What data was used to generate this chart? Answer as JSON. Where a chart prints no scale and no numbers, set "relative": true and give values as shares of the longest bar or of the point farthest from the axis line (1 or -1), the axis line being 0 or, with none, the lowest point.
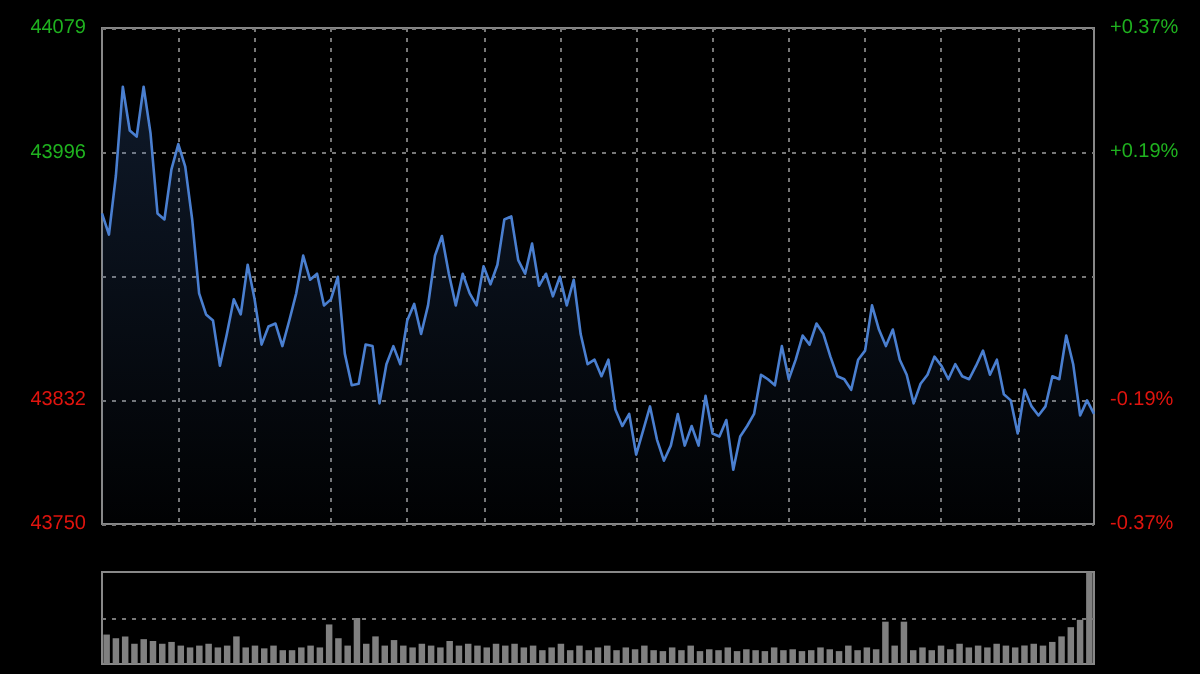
{
  "chart_data": [
    {
      "type": "area",
      "categories": [
        null,
        null,
        null,
        null,
        null,
        null,
        null,
        null,
        null,
        null,
        null,
        null,
        null,
        null,
        null,
        null,
        null,
        null,
        null,
        null,
        null,
        null,
        null,
        null,
        null,
        null,
        null,
        null,
        null,
        null,
        null,
        null,
        null,
        null,
        null,
        null,
        null,
        null,
        null,
        null,
        null,
        null,
        null,
        null,
        null,
        null,
        null,
        null,
        null,
        null,
        null,
        null,
        null,
        null,
        null,
        null,
        null,
        null,
        null,
        null,
        null,
        null,
        null,
        null,
        null,
        null,
        null,
        null,
        null,
        null,
        null,
        null,
        null,
        null,
        null,
        null,
        null,
        null,
        null,
        null,
        null,
        null,
        null,
        null,
        null,
        null,
        null,
        null,
        null,
        null,
        null,
        null,
        null,
        null,
        null,
        null,
        null,
        null,
        null,
        null,
        null,
        null,
        null,
        null,
        null,
        null,
        null,
        null,
        null,
        null,
        null,
        null,
        null,
        null,
        null,
        null,
        null,
        null,
        null,
        null,
        null,
        null,
        null,
        null,
        null,
        null,
        null,
        null,
        null,
        null,
        null,
        null,
        null,
        null,
        null,
        null,
        null,
        null,
        null,
        null,
        null,
        null,
        null,
        null
      ],
      "series": [
        {
          "color": "#4a7fd0",
          "values": [
            43956,
            43942,
            43981,
            44040,
            44011,
            44007,
            44040,
            44009,
            43956,
            43952,
            43985,
            44002,
            43987,
            43952,
            43903,
            43889,
            43885,
            43855,
            43876,
            43899,
            43889,
            43922,
            43899,
            43869,
            43881,
            43883,
            43868,
            43885,
            43903,
            43928,
            43912,
            43916,
            43895,
            43899,
            43914,
            43863,
            43842,
            43843,
            43869,
            43868,
            43830,
            43856,
            43868,
            43856,
            43885,
            43896,
            43876,
            43895,
            43928,
            43941,
            43916,
            43895,
            43916,
            43903,
            43895,
            43921,
            43909,
            43922,
            43952,
            43954,
            43925,
            43916,
            43936,
            43908,
            43916,
            43901,
            43914,
            43895,
            43912,
            43876,
            43856,
            43859,
            43848,
            43859,
            43826,
            43815,
            43823,
            43796,
            43812,
            43828,
            43806,
            43792,
            43802,
            43823,
            43802,
            43815,
            43802,
            43835,
            43810,
            43808,
            43819,
            43786,
            43808,
            43815,
            43823,
            43849,
            43846,
            43842,
            43868,
            43846,
            43859,
            43875,
            43869,
            43883,
            43876,
            43861,
            43848,
            43846,
            43839,
            43859,
            43865,
            43895,
            43879,
            43868,
            43879,
            43859,
            43849,
            43830,
            43843,
            43849,
            43861,
            43855,
            43846,
            43856,
            43848,
            43846,
            43855,
            43865,
            43849,
            43859,
            43836,
            43832,
            43810,
            43839,
            43828,
            43822,
            43828,
            43848,
            43846,
            43875,
            43856,
            43822,
            43832,
            43823
          ]
        }
      ],
      "ylim": [
        43750,
        44079
      ],
      "yticks": [
        43750,
        43832,
        {
          "value": 43914,
          "label": null
        },
        43996,
        44079
      ],
      "y2lim": [
        -0.375,
        0.375
      ],
      "y2ticks": [
        {
          "value": -0.375,
          "label": "-0.37%"
        },
        {
          "value": -0.1875,
          "label": "-0.19%"
        },
        {
          "value": 0.1875,
          "label": "+0.19%"
        },
        {
          "value": 0.375,
          "label": "+0.37%"
        }
      ],
      "grid": true
    },
    {
      "type": "bar",
      "relative": true,
      "color": "#808080",
      "ref_lines": [
        {
          "axis": "y",
          "value": 0.5,
          "color": "#777777",
          "line_style": "dotted"
        }
      ],
      "categories": [
        null,
        null,
        null,
        null,
        null,
        null,
        null,
        null,
        null,
        null,
        null,
        null,
        null,
        null,
        null,
        null,
        null,
        null,
        null,
        null,
        null,
        null,
        null,
        null,
        null,
        null,
        null,
        null,
        null,
        null,
        null,
        null,
        null,
        null,
        null,
        null,
        null,
        null,
        null,
        null,
        null,
        null,
        null,
        null,
        null,
        null,
        null,
        null,
        null,
        null,
        null,
        null,
        null,
        null,
        null,
        null,
        null,
        null,
        null,
        null,
        null,
        null,
        null,
        null,
        null,
        null,
        null,
        null,
        null,
        null,
        null,
        null,
        null,
        null,
        null,
        null,
        null,
        null,
        null,
        null,
        null,
        null,
        null,
        null,
        null,
        null,
        null,
        null,
        null,
        null,
        null,
        null,
        null,
        null,
        null,
        null,
        null,
        null,
        null,
        null,
        null,
        null,
        null,
        null,
        null,
        null,
        null
      ],
      "values": [
        0.32,
        0.28,
        0.3,
        0.22,
        0.27,
        0.25,
        0.22,
        0.24,
        0.2,
        0.18,
        0.2,
        0.22,
        0.18,
        0.2,
        0.3,
        0.18,
        0.2,
        0.17,
        0.2,
        0.15,
        0.15,
        0.18,
        0.2,
        0.18,
        0.43,
        0.28,
        0.2,
        0.5,
        0.22,
        0.3,
        0.2,
        0.26,
        0.2,
        0.18,
        0.22,
        0.2,
        0.18,
        0.25,
        0.2,
        0.22,
        0.2,
        0.18,
        0.22,
        0.2,
        0.22,
        0.18,
        0.2,
        0.15,
        0.18,
        0.22,
        0.15,
        0.2,
        0.15,
        0.18,
        0.2,
        0.15,
        0.18,
        0.16,
        0.2,
        0.15,
        0.14,
        0.18,
        0.15,
        0.2,
        0.14,
        0.16,
        0.15,
        0.18,
        0.14,
        0.16,
        0.15,
        0.14,
        0.18,
        0.15,
        0.16,
        0.14,
        0.15,
        0.18,
        0.16,
        0.14,
        0.2,
        0.15,
        0.18,
        0.16,
        0.46,
        0.2,
        0.46,
        0.15,
        0.18,
        0.15,
        0.2,
        0.16,
        0.22,
        0.18,
        0.2,
        0.18,
        0.22,
        0.2,
        0.18,
        0.2,
        0.22,
        0.2,
        0.24,
        0.3,
        0.4,
        0.48,
        1
      ]
    }
  ]
}
